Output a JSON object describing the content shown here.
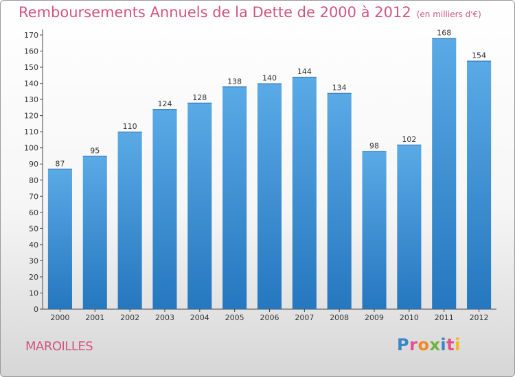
{
  "header": {
    "title": "Remboursements Annuels de la Dette de 2000 à 2012",
    "unit": "(en milliers d'€)"
  },
  "footer": {
    "commune": "MAROILLES",
    "logo_letters": [
      "P",
      "r",
      "o",
      "x",
      "i",
      "t",
      "i"
    ],
    "logo_colors": [
      "#3b86c8",
      "#e84f8a",
      "#f08a24",
      "#6cb33f",
      "#3b86c8",
      "#e84f8a",
      "#f3b81b"
    ]
  },
  "colors": {
    "title": "#d2547e",
    "bar": "#4a9fe0",
    "bar_dark": "#2577bf",
    "axis": "#444444"
  },
  "chart_data": {
    "type": "bar",
    "title": "Remboursements Annuels de la Dette de 2000 à 2012",
    "subtitle": "(en milliers d'€)",
    "categories": [
      "2000",
      "2001",
      "2002",
      "2003",
      "2004",
      "2005",
      "2006",
      "2007",
      "2008",
      "2009",
      "2010",
      "2011",
      "2012"
    ],
    "values": [
      87,
      95,
      110,
      124,
      128,
      138,
      140,
      144,
      134,
      98,
      102,
      168,
      154
    ],
    "ylim": [
      0,
      170
    ],
    "yticks": [
      0,
      10,
      20,
      30,
      40,
      50,
      60,
      70,
      80,
      90,
      100,
      110,
      120,
      130,
      140,
      150,
      160,
      170
    ],
    "grid": false,
    "legend": "none"
  }
}
